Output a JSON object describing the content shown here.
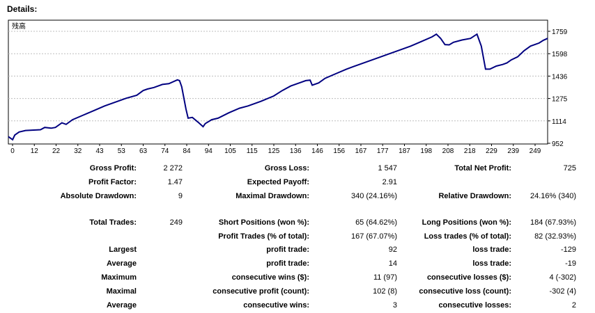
{
  "title": "Details:",
  "chart_data": {
    "type": "line",
    "legend": "残高",
    "x_ticks": [
      "0",
      "12",
      "22",
      "32",
      "43",
      "53",
      "63",
      "74",
      "84",
      "94",
      "105",
      "115",
      "125",
      "136",
      "146",
      "156",
      "167",
      "177",
      "187",
      "198",
      "208",
      "218",
      "229",
      "239",
      "249"
    ],
    "y_ticks": [
      "1759",
      "1598",
      "1436",
      "1275",
      "1114",
      "952"
    ],
    "xlim": [
      0,
      252
    ],
    "ylim": [
      952,
      1759
    ],
    "grid": true,
    "color": "#000080",
    "series": [
      {
        "points": [
          [
            0,
            1000
          ],
          [
            2,
            980
          ],
          [
            3,
            1010
          ],
          [
            5,
            1030
          ],
          [
            8,
            1040
          ],
          [
            15,
            1045
          ],
          [
            17,
            1060
          ],
          [
            20,
            1055
          ],
          [
            22,
            1060
          ],
          [
            25,
            1090
          ],
          [
            27,
            1080
          ],
          [
            30,
            1110
          ],
          [
            35,
            1140
          ],
          [
            40,
            1170
          ],
          [
            45,
            1200
          ],
          [
            50,
            1225
          ],
          [
            55,
            1250
          ],
          [
            60,
            1270
          ],
          [
            63,
            1300
          ],
          [
            65,
            1310
          ],
          [
            68,
            1320
          ],
          [
            72,
            1340
          ],
          [
            75,
            1345
          ],
          [
            79,
            1370
          ],
          [
            80,
            1365
          ],
          [
            81,
            1325
          ],
          [
            83,
            1180
          ],
          [
            84,
            1120
          ],
          [
            86,
            1125
          ],
          [
            89,
            1090
          ],
          [
            91,
            1065
          ],
          [
            92,
            1085
          ],
          [
            95,
            1110
          ],
          [
            98,
            1120
          ],
          [
            103,
            1155
          ],
          [
            108,
            1185
          ],
          [
            112,
            1200
          ],
          [
            118,
            1230
          ],
          [
            124,
            1265
          ],
          [
            128,
            1300
          ],
          [
            132,
            1330
          ],
          [
            136,
            1350
          ],
          [
            139,
            1365
          ],
          [
            141,
            1368
          ],
          [
            142,
            1335
          ],
          [
            145,
            1350
          ],
          [
            148,
            1380
          ],
          [
            153,
            1410
          ],
          [
            158,
            1440
          ],
          [
            163,
            1465
          ],
          [
            168,
            1490
          ],
          [
            173,
            1515
          ],
          [
            178,
            1540
          ],
          [
            183,
            1565
          ],
          [
            188,
            1590
          ],
          [
            193,
            1620
          ],
          [
            198,
            1650
          ],
          [
            200,
            1668
          ],
          [
            202,
            1640
          ],
          [
            204,
            1600
          ],
          [
            206,
            1598
          ],
          [
            208,
            1615
          ],
          [
            212,
            1630
          ],
          [
            216,
            1640
          ],
          [
            219,
            1668
          ],
          [
            221,
            1590
          ],
          [
            223,
            1440
          ],
          [
            225,
            1440
          ],
          [
            228,
            1460
          ],
          [
            231,
            1470
          ],
          [
            233,
            1480
          ],
          [
            235,
            1500
          ],
          [
            238,
            1520
          ],
          [
            241,
            1560
          ],
          [
            244,
            1590
          ],
          [
            246,
            1600
          ],
          [
            248,
            1610
          ],
          [
            250,
            1628
          ],
          [
            252,
            1640
          ]
        ]
      }
    ]
  },
  "summary": {
    "gross_profit_label": "Gross Profit:",
    "gross_profit": "2 272",
    "gross_loss_label": "Gross Loss:",
    "gross_loss": "1 547",
    "total_net_profit_label": "Total Net Profit:",
    "total_net_profit": "725",
    "profit_factor_label": "Profit Factor:",
    "profit_factor": "1.47",
    "expected_payoff_label": "Expected Payoff:",
    "expected_payoff": "2.91",
    "absolute_drawdown_label": "Absolute Drawdown:",
    "absolute_drawdown": "9",
    "maximal_drawdown_label": "Maximal Drawdown:",
    "maximal_drawdown": "340 (24.16%)",
    "relative_drawdown_label": "Relative Drawdown:",
    "relative_drawdown": "24.16% (340)"
  },
  "trades": {
    "total_trades_label": "Total Trades:",
    "total_trades": "249",
    "short_positions_label": "Short Positions (won %):",
    "short_positions": "65 (64.62%)",
    "long_positions_label": "Long Positions (won %):",
    "long_positions": "184 (67.93%)",
    "profit_trades_label": "Profit Trades (% of total):",
    "profit_trades": "167 (67.07%)",
    "loss_trades_label": "Loss trades (% of total):",
    "loss_trades": "82 (32.93%)",
    "largest_label": "Largest",
    "largest_profit_label": "profit trade:",
    "largest_profit": "92",
    "largest_loss_label": "loss trade:",
    "largest_loss": "-129",
    "average_label": "Average",
    "average_profit_label": "profit trade:",
    "average_profit": "14",
    "average_loss_label": "loss trade:",
    "average_loss": "-19",
    "maximum_label": "Maximum",
    "max_wins_label": "consecutive wins ($):",
    "max_wins": "11 (97)",
    "max_losses_label": "consecutive losses ($):",
    "max_losses": "4 (-302)",
    "maximal_label": "Maximal",
    "maximal_profit_label": "consecutive profit (count):",
    "maximal_profit": "102 (8)",
    "maximal_loss_label": "consecutive loss (count):",
    "maximal_loss": "-302 (4)",
    "average2_label": "Average",
    "avg_wins_label": "consecutive wins:",
    "avg_wins": "3",
    "avg_losses_label": "consecutive losses:",
    "avg_losses": "2"
  }
}
